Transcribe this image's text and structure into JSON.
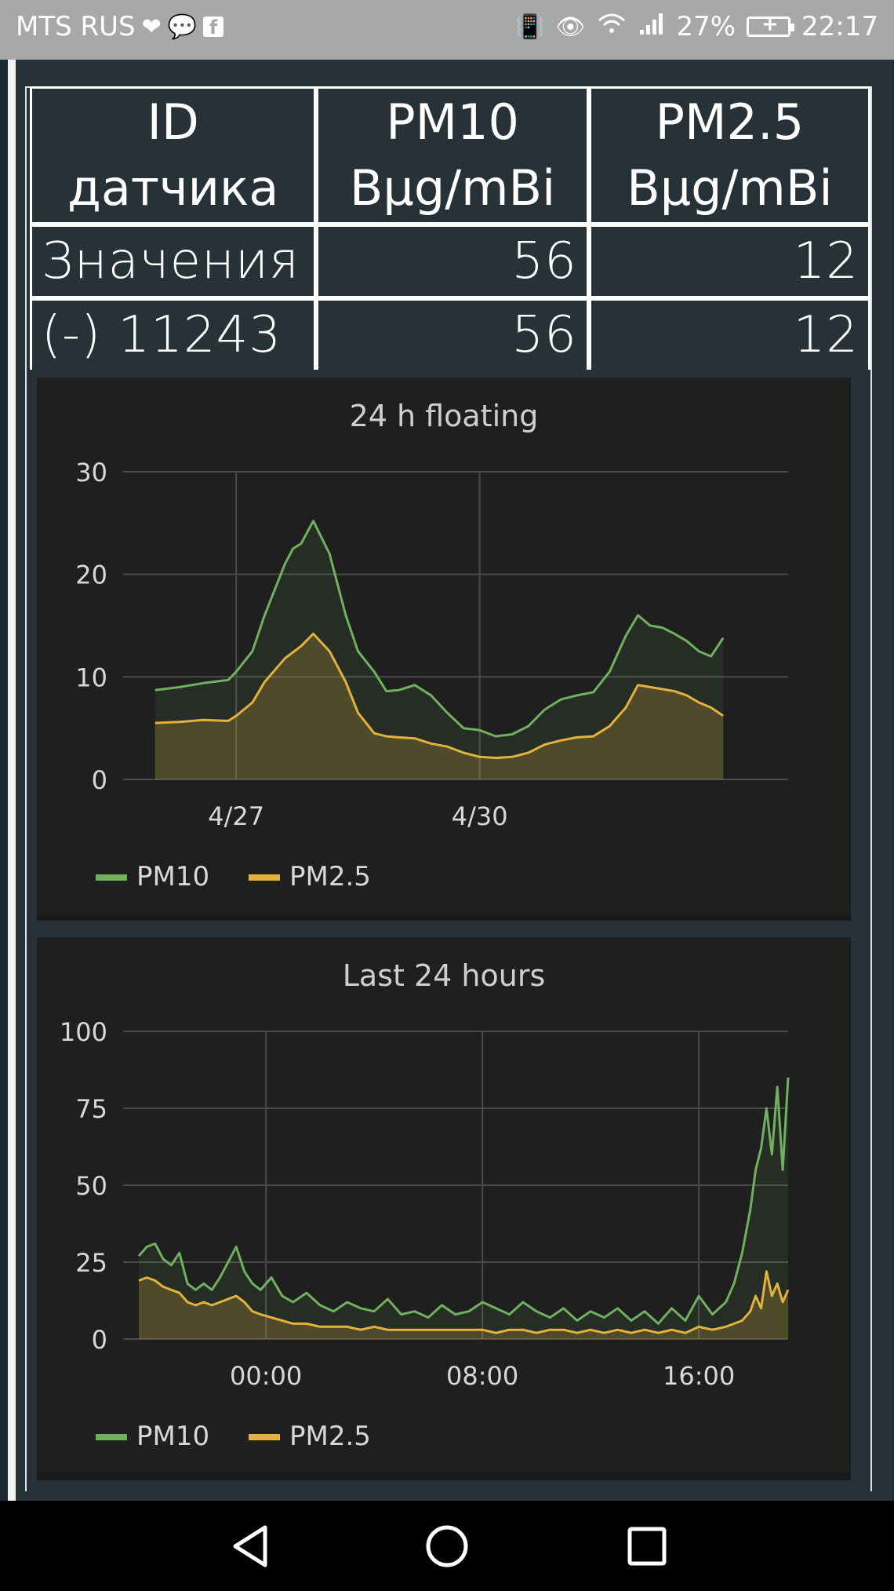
{
  "status_bar": {
    "carrier": "MTS RUS",
    "battery": "27%",
    "time": "22:17",
    "icons": [
      "heart-pulse-icon",
      "chat-icon",
      "facebook-icon",
      "vibrate-icon",
      "eye-icon",
      "wifi-icon",
      "signal-icon",
      "battery-charging-icon"
    ]
  },
  "table": {
    "headers": [
      {
        "line1": "ID",
        "line2": "датчика"
      },
      {
        "line1": "PM10",
        "line2": "Bµg/mBi"
      },
      {
        "line1": "PM2.5",
        "line2": "Bµg/mBi"
      }
    ],
    "rows": [
      {
        "label": "Значения",
        "pm10": "56",
        "pm25": "12"
      },
      {
        "label": "(-) 11243",
        "pm10": "56",
        "pm25": "12"
      }
    ]
  },
  "colors": {
    "pm10": "#6fb15f",
    "pm25": "#e3b23c",
    "chart_bg": "#1f1f1f",
    "page_bg": "#263238"
  },
  "chart_data": [
    {
      "type": "area",
      "title": "24 h floating",
      "xlabel": "",
      "ylabel": "",
      "ylim": [
        0,
        30
      ],
      "yticks": [
        "0",
        "10",
        "20",
        "30"
      ],
      "xticks": [
        {
          "label": "4/27",
          "x": 1.0
        },
        {
          "label": "4/30",
          "x": 4.0
        }
      ],
      "xlim": [
        -0.2,
        7.8
      ],
      "grid": true,
      "legend": "bottom-left",
      "series": [
        {
          "name": "PM10",
          "x": [
            0.0,
            0.3,
            0.6,
            0.9,
            1.0,
            1.2,
            1.35,
            1.6,
            1.7,
            1.8,
            1.95,
            2.15,
            2.35,
            2.5,
            2.6,
            2.7,
            2.85,
            3.0,
            3.2,
            3.4,
            3.6,
            3.8,
            4.0,
            4.2,
            4.4,
            4.6,
            4.8,
            5.0,
            5.2,
            5.4,
            5.6,
            5.8,
            5.95,
            6.1,
            6.25,
            6.4,
            6.55,
            6.7,
            6.85,
            7.0
          ],
          "values": [
            8.7,
            9.0,
            9.4,
            9.7,
            10.5,
            12.5,
            16.0,
            21.0,
            22.5,
            23.0,
            25.2,
            22.0,
            16.0,
            12.5,
            11.5,
            10.5,
            8.6,
            8.7,
            9.2,
            8.2,
            6.5,
            5.0,
            4.8,
            4.2,
            4.4,
            5.2,
            6.8,
            7.8,
            8.2,
            8.5,
            10.5,
            14.0,
            16.0,
            15.0,
            14.8,
            14.2,
            13.5,
            12.5,
            12.0,
            13.8
          ]
        },
        {
          "name": "PM2.5",
          "x": [
            0.0,
            0.3,
            0.6,
            0.9,
            1.0,
            1.2,
            1.35,
            1.6,
            1.8,
            1.95,
            2.15,
            2.35,
            2.5,
            2.6,
            2.7,
            2.85,
            3.0,
            3.2,
            3.4,
            3.6,
            3.8,
            4.0,
            4.2,
            4.4,
            4.6,
            4.8,
            5.0,
            5.2,
            5.4,
            5.6,
            5.8,
            5.95,
            6.1,
            6.25,
            6.4,
            6.55,
            6.7,
            6.85,
            7.0
          ],
          "values": [
            5.5,
            5.6,
            5.8,
            5.7,
            6.2,
            7.5,
            9.5,
            11.8,
            13.0,
            14.2,
            12.5,
            9.5,
            6.5,
            5.5,
            4.5,
            4.2,
            4.1,
            4.0,
            3.5,
            3.2,
            2.6,
            2.2,
            2.1,
            2.2,
            2.6,
            3.4,
            3.8,
            4.1,
            4.2,
            5.2,
            7.0,
            9.2,
            9.0,
            8.8,
            8.6,
            8.2,
            7.5,
            7.0,
            6.2
          ]
        }
      ]
    },
    {
      "type": "area",
      "title": "Last 24 hours",
      "xlabel": "",
      "ylabel": "",
      "ylim": [
        0,
        100
      ],
      "yticks": [
        "0",
        "25",
        "50",
        "75",
        "100"
      ],
      "xticks": [
        {
          "label": "00:00",
          "x": 0
        },
        {
          "label": "08:00",
          "x": 8
        },
        {
          "label": "16:00",
          "x": 16
        }
      ],
      "xlim": [
        -4.7,
        19.3
      ],
      "grid": true,
      "legend": "bottom-left",
      "series": [
        {
          "name": "PM10",
          "x": [
            -4.7,
            -4.4,
            -4.1,
            -3.8,
            -3.5,
            -3.2,
            -2.9,
            -2.6,
            -2.3,
            -2.0,
            -1.7,
            -1.4,
            -1.1,
            -0.8,
            -0.5,
            -0.2,
            0.2,
            0.6,
            1.0,
            1.5,
            2.0,
            2.5,
            3.0,
            3.5,
            4.0,
            4.5,
            5.0,
            5.5,
            6.0,
            6.5,
            7.0,
            7.5,
            8.0,
            8.5,
            9.0,
            9.5,
            10.0,
            10.5,
            11.0,
            11.5,
            12.0,
            12.5,
            13.0,
            13.5,
            14.0,
            14.5,
            15.0,
            15.5,
            16.0,
            16.5,
            17.0,
            17.3,
            17.6,
            17.9,
            18.1,
            18.3,
            18.5,
            18.7,
            18.9,
            19.1,
            19.3
          ],
          "values": [
            27,
            30,
            31,
            26,
            24,
            28,
            18,
            16,
            18,
            16,
            20,
            25,
            30,
            22,
            18,
            16,
            20,
            14,
            12,
            15,
            11,
            9,
            12,
            10,
            9,
            13,
            8,
            9,
            7,
            11,
            8,
            9,
            12,
            10,
            8,
            12,
            9,
            7,
            10,
            6,
            9,
            7,
            10,
            6,
            9,
            5,
            10,
            6,
            14,
            8,
            12,
            18,
            28,
            42,
            55,
            62,
            75,
            60,
            82,
            55,
            85
          ]
        },
        {
          "name": "PM2.5",
          "x": [
            -4.7,
            -4.4,
            -4.1,
            -3.8,
            -3.5,
            -3.2,
            -2.9,
            -2.6,
            -2.3,
            -2.0,
            -1.7,
            -1.4,
            -1.1,
            -0.8,
            -0.5,
            -0.2,
            0.2,
            0.6,
            1.0,
            1.5,
            2.0,
            2.5,
            3.0,
            3.5,
            4.0,
            4.5,
            5.0,
            5.5,
            6.0,
            6.5,
            7.0,
            7.5,
            8.0,
            8.5,
            9.0,
            9.5,
            10.0,
            10.5,
            11.0,
            11.5,
            12.0,
            12.5,
            13.0,
            13.5,
            14.0,
            14.5,
            15.0,
            15.5,
            16.0,
            16.5,
            17.0,
            17.3,
            17.6,
            17.9,
            18.1,
            18.3,
            18.5,
            18.7,
            18.9,
            19.1,
            19.3
          ],
          "values": [
            19,
            20,
            19,
            17,
            16,
            15,
            12,
            11,
            12,
            11,
            12,
            13,
            14,
            12,
            9,
            8,
            7,
            6,
            5,
            5,
            4,
            4,
            4,
            3,
            4,
            3,
            3,
            3,
            3,
            3,
            3,
            3,
            3,
            2,
            3,
            3,
            2,
            3,
            3,
            2,
            3,
            2,
            3,
            2,
            3,
            2,
            3,
            2,
            4,
            3,
            4,
            5,
            6,
            9,
            14,
            10,
            22,
            14,
            18,
            12,
            16
          ]
        }
      ]
    }
  ]
}
